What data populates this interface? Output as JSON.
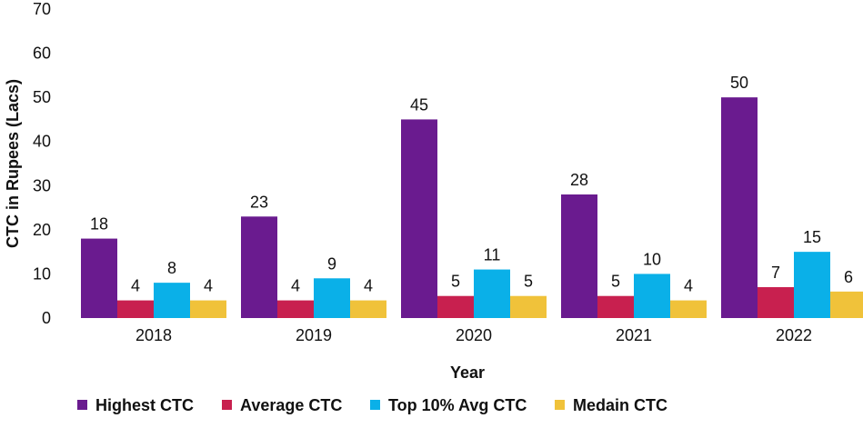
{
  "chart_data": {
    "type": "bar",
    "title": "",
    "xlabel": "Year",
    "ylabel": "CTC in Rupees (Lacs)",
    "ylim": [
      0,
      70
    ],
    "yticks": [
      0,
      10,
      20,
      30,
      40,
      50,
      60,
      70
    ],
    "grid": false,
    "legend_position": "bottom",
    "categories": [
      "2018",
      "2019",
      "2020",
      "2021",
      "2022"
    ],
    "series": [
      {
        "name": "Highest CTC",
        "color": "#6a1b8f",
        "values": [
          18,
          23,
          45,
          28,
          50
        ]
      },
      {
        "name": "Average CTC",
        "color": "#c8204f",
        "values": [
          4,
          4,
          5,
          5,
          7
        ]
      },
      {
        "name": "Top 10% Avg CTC",
        "color": "#0ab0e8",
        "values": [
          8,
          9,
          11,
          10,
          15
        ]
      },
      {
        "name": "Medain CTC",
        "color": "#f0c23a",
        "values": [
          4,
          4,
          5,
          4,
          6
        ]
      }
    ]
  }
}
